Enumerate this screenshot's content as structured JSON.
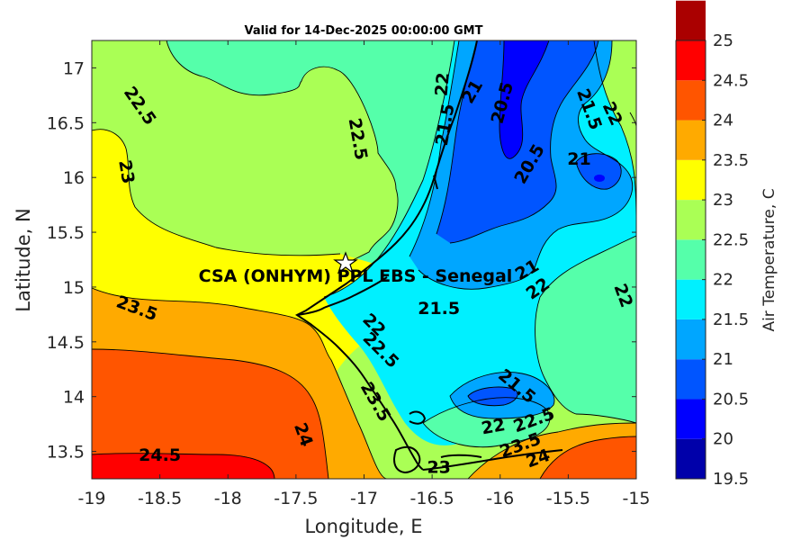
{
  "title": "Valid for 14-Dec-2025 00:00:00 GMT",
  "xlabel": "Longitude, E",
  "ylabel": "Latitude, N",
  "site_label": "CSA (ONHYM) PPL EBS  - Senegal",
  "site_location": {
    "lon": -17.12,
    "lat": 15.22
  },
  "x_ticks": [
    "-19",
    "-18.5",
    "-18",
    "-17.5",
    "-17",
    "-16.5",
    "-16",
    "-15.5",
    "-15"
  ],
  "y_ticks": [
    "13.5",
    "14",
    "14.5",
    "15",
    "15.5",
    "16",
    "16.5",
    "17"
  ],
  "colorbar": {
    "title": "Air Temperature, C",
    "ticks": [
      "19.5",
      "20",
      "20.5",
      "21",
      "21.5",
      "22",
      "22.5",
      "23",
      "23.5",
      "24",
      "24.5",
      "25"
    ],
    "colors": [
      "#0000aa",
      "#0000ff",
      "#0055ff",
      "#00a6ff",
      "#00f0ff",
      "#55ffaa",
      "#aaff55",
      "#ffff00",
      "#ffaa00",
      "#ff5500",
      "#ff0000",
      "#aa0000"
    ]
  },
  "chart_data": {
    "type": "heatmap",
    "title": "Valid for 14-Dec-2025 00:00:00 GMT",
    "xlabel": "Longitude, E",
    "ylabel": "Latitude, N",
    "xlim": [
      -19,
      -15
    ],
    "ylim": [
      13.25,
      17.25
    ],
    "colorbar_range": [
      19.5,
      25
    ],
    "colorbar_step": 0.5,
    "colorbar_label": "Air Temperature, C",
    "contour_labels": [
      {
        "text": "22.5",
        "lon": -18.65,
        "lat": 16.65,
        "rot": 55
      },
      {
        "text": "22.5",
        "lon": -17.05,
        "lat": 16.35,
        "rot": 80
      },
      {
        "text": "23",
        "lon": -18.75,
        "lat": 16.05,
        "rot": 80
      },
      {
        "text": "22",
        "lon": -16.42,
        "lat": 16.85,
        "rot": -85
      },
      {
        "text": "21.5",
        "lon": -16.4,
        "lat": 16.48,
        "rot": -80
      },
      {
        "text": "21",
        "lon": -16.2,
        "lat": 16.78,
        "rot": -60
      },
      {
        "text": "20.5",
        "lon": -15.98,
        "lat": 16.68,
        "rot": -75
      },
      {
        "text": "21.5",
        "lon": -15.35,
        "lat": 16.62,
        "rot": 70
      },
      {
        "text": "22",
        "lon": -15.18,
        "lat": 16.58,
        "rot": 65
      },
      {
        "text": "20.5",
        "lon": -15.78,
        "lat": 16.12,
        "rot": -60
      },
      {
        "text": "21",
        "lon": -15.42,
        "lat": 16.16,
        "rot": 0
      },
      {
        "text": "22",
        "lon": -15.1,
        "lat": 14.92,
        "rot": 70
      },
      {
        "text": "23.5",
        "lon": -18.67,
        "lat": 14.8,
        "rot": 20
      },
      {
        "text": "21.5",
        "lon": -16.45,
        "lat": 14.8,
        "rot": 0
      },
      {
        "text": "21",
        "lon": -15.8,
        "lat": 15.15,
        "rot": -30
      },
      {
        "text": "22",
        "lon": -15.72,
        "lat": 14.98,
        "rot": -35
      },
      {
        "text": "22",
        "lon": -16.93,
        "lat": 14.65,
        "rot": 45
      },
      {
        "text": "22.5",
        "lon": -16.88,
        "lat": 14.42,
        "rot": 45
      },
      {
        "text": "23.5",
        "lon": -16.92,
        "lat": 13.95,
        "rot": 60
      },
      {
        "text": "24",
        "lon": -17.45,
        "lat": 13.65,
        "rot": 70
      },
      {
        "text": "24.5",
        "lon": -18.5,
        "lat": 13.46,
        "rot": 0
      },
      {
        "text": "21.5",
        "lon": -15.88,
        "lat": 14.09,
        "rot": 40
      },
      {
        "text": "22",
        "lon": -16.05,
        "lat": 13.72,
        "rot": -10
      },
      {
        "text": "22.5",
        "lon": -15.75,
        "lat": 13.78,
        "rot": -20
      },
      {
        "text": "23.5",
        "lon": -15.85,
        "lat": 13.55,
        "rot": -20
      },
      {
        "text": "24",
        "lon": -15.72,
        "lat": 13.43,
        "rot": -20
      },
      {
        "text": "23",
        "lon": -16.45,
        "lat": 13.35,
        "rot": 0
      }
    ]
  }
}
